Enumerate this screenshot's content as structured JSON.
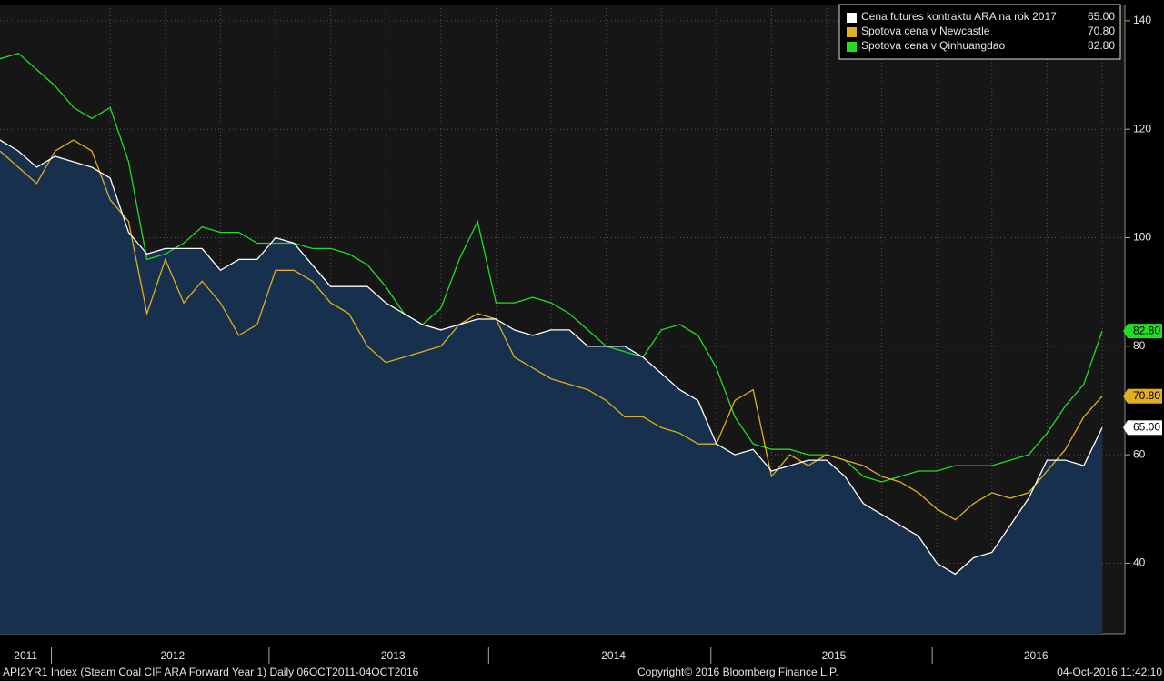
{
  "chart_data": {
    "type": "line",
    "categories": [
      null,
      "2011",
      null,
      null,
      null,
      null,
      null,
      null,
      null,
      "2012",
      null,
      null,
      null,
      null,
      null,
      null,
      null,
      null,
      null,
      null,
      null,
      "2013",
      null,
      null,
      null,
      null,
      null,
      null,
      null,
      null,
      null,
      null,
      null,
      "2014",
      null,
      null,
      null,
      null,
      null,
      null,
      null,
      null,
      null,
      null,
      null,
      "2015",
      null,
      null,
      null,
      null,
      null,
      null,
      null,
      null,
      null,
      null,
      "2016",
      null,
      null,
      null,
      null
    ],
    "series": [
      {
        "name": "Cena futures kontraktu ARA na rok 2017",
        "color": "#ffffff",
        "area_color": "#17304d",
        "value_label": "65.00",
        "values": [
          118,
          116,
          113,
          115,
          114,
          113,
          111,
          101,
          97,
          98,
          98,
          98,
          94,
          96,
          96,
          100,
          99,
          95,
          91,
          91,
          91,
          88,
          86,
          84,
          83,
          84,
          85,
          85,
          83,
          82,
          83,
          83,
          80,
          80,
          80,
          78,
          75,
          72,
          70,
          62,
          60,
          61,
          57,
          58,
          59,
          59,
          56,
          51,
          49,
          47,
          45,
          40,
          38,
          41,
          42,
          47,
          52,
          59,
          59,
          58,
          65
        ]
      },
      {
        "name": "Spotova cena v Newcastle",
        "color": "#e0b020",
        "value_label": "70.80",
        "values": [
          116,
          113,
          110,
          116,
          118,
          116,
          107,
          103,
          86,
          96,
          88,
          92,
          88,
          82,
          84,
          94,
          94,
          92,
          88,
          86,
          80,
          77,
          78,
          79,
          80,
          84,
          86,
          85,
          78,
          76,
          74,
          73,
          72,
          70,
          67,
          67,
          65,
          64,
          62,
          62,
          70,
          72,
          56,
          60,
          58,
          60,
          59,
          58,
          56,
          55,
          53,
          50,
          48,
          51,
          53,
          52,
          53,
          57,
          61,
          67,
          70.8
        ]
      },
      {
        "name": "Spotova cena v Qinhuangdao",
        "color": "#22dd22",
        "value_label": "82.80",
        "values": [
          133,
          134,
          131,
          128,
          124,
          122,
          124,
          114,
          96,
          97,
          99,
          102,
          101,
          101,
          99,
          99,
          99,
          98,
          98,
          97,
          95,
          91,
          86,
          84,
          87,
          96,
          103,
          88,
          88,
          89,
          88,
          86,
          83,
          80,
          79,
          78,
          83,
          84,
          82,
          76,
          67,
          62,
          61,
          61,
          60,
          60,
          59,
          56,
          55,
          56,
          57,
          57,
          58,
          58,
          58,
          59,
          60,
          64,
          69,
          73,
          82.8
        ]
      }
    ],
    "ylim": [
      27,
      143
    ],
    "yticks": [
      40,
      60,
      80,
      100,
      120,
      140
    ],
    "grid": true,
    "legend": "top-right",
    "footer_left": "API2YR1 Index (Steam Coal CIF ARA Forward Year 1)  Daily 06OCT2011-04OCT2016",
    "footer_center": "Copyright© 2016 Bloomberg Finance L.P.",
    "footer_right": "04-Oct-2016 11:42:10"
  }
}
